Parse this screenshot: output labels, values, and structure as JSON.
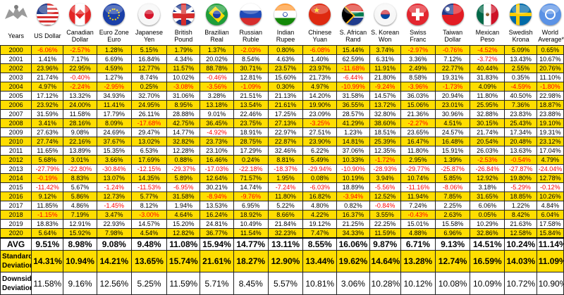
{
  "header": {
    "years_label": "Years",
    "currencies": [
      {
        "name": "US Dollar",
        "flag": "us-flag"
      },
      {
        "name": "Canadian Dollar",
        "flag": "canada-flag"
      },
      {
        "name": "Euro Zone Euro",
        "flag": "eu-flag"
      },
      {
        "name": "Japanese Yen",
        "flag": "japan-flag"
      },
      {
        "name": "British Pound",
        "flag": "uk-flag"
      },
      {
        "name": "Brazilian Real",
        "flag": "brazil-flag"
      },
      {
        "name": "Russian Ruble",
        "flag": "russia-flag"
      },
      {
        "name": "Indian Rupee",
        "flag": "india-flag"
      },
      {
        "name": "Chinese Yuan",
        "flag": "china-flag"
      },
      {
        "name": "S. African Rand",
        "flag": "south-africa-flag"
      },
      {
        "name": "S. Korean Won",
        "flag": "south-korea-flag"
      },
      {
        "name": "Swiss Franc",
        "flag": "switzerland-flag"
      },
      {
        "name": "Taiwan Dollar",
        "flag": "taiwan-flag"
      },
      {
        "name": "Mexican Peso",
        "flag": "mexico-flag"
      },
      {
        "name": "Swedish Krona",
        "flag": "sweden-flag"
      },
      {
        "name": "World Average*",
        "flag": "un-flag"
      }
    ]
  },
  "rows": [
    {
      "year": "2000",
      "values": [
        "-6.06%",
        "-2.57%",
        "1.28%",
        "5.15%",
        "1.79%",
        "1.37%",
        "-2.03%",
        "0.80%",
        "-6.08%",
        "15.44%",
        "3.74%",
        "-2.97%",
        "-0.76%",
        "-4.52%",
        "5.09%",
        "0.65%"
      ]
    },
    {
      "year": "2001",
      "values": [
        "1.41%",
        "7.17%",
        "6.69%",
        "16.84%",
        "4.34%",
        "20.02%",
        "8.54%",
        "4.63%",
        "1.40%",
        "62.59%",
        "6.31%",
        "3.36%",
        "7.12%",
        "-3.72%",
        "13.43%",
        "10.67%"
      ]
    },
    {
      "year": "2002",
      "values": [
        "23.96%",
        "22.95%",
        "4.59%",
        "12.77%",
        "11.57%",
        "88.78%",
        "30.71%",
        "23.57%",
        "23.97%",
        "-11.68%",
        "11.91%",
        "2.49%",
        "22.77%",
        "40.44%",
        "2.55%",
        "20.76%"
      ]
    },
    {
      "year": "2003",
      "values": [
        "21.74%",
        "-0.40%",
        "1.27%",
        "8.74%",
        "10.02%",
        "-0.46%",
        "12.81%",
        "15.60%",
        "21.73%",
        "-6.44%",
        "21.80%",
        "8.58%",
        "19.31%",
        "31.83%",
        "0.35%",
        "11.10%"
      ]
    },
    {
      "year": "2004",
      "values": [
        "4.97%",
        "-2.24%",
        "-2.95%",
        "0.25%",
        "-3.08%",
        "-3.56%",
        "-1.09%",
        "0.30%",
        "4.97%",
        "-10.99%",
        "-9.24%",
        "-3.96%",
        "-1.73%",
        "4.09%",
        "-4.59%",
        "-1.80%"
      ]
    },
    {
      "year": "2005",
      "values": [
        "17.12%",
        "13.32%",
        "34.93%",
        "32.70%",
        "31.06%",
        "3.28%",
        "21.51%",
        "21.13%",
        "14.20%",
        "31.58%",
        "14.57%",
        "36.03%",
        "20.94%",
        "11.80%",
        "40.50%",
        "22.98%"
      ]
    },
    {
      "year": "2006",
      "values": [
        "23.92%",
        "24.00%",
        "11.41%",
        "24.95%",
        "8.95%",
        "13.18%",
        "13.54%",
        "21.61%",
        "19.90%",
        "36.55%",
        "13.72%",
        "15.06%",
        "23.01%",
        "25.95%",
        "7.36%",
        "18.87%"
      ]
    },
    {
      "year": "2007",
      "values": [
        "31.59%",
        "11.58%",
        "17.79%",
        "26.11%",
        "28.88%",
        "9.01%",
        "22.46%",
        "17.25%",
        "23.09%",
        "28.57%",
        "32.80%",
        "21.36%",
        "30.96%",
        "32.88%",
        "23.83%",
        "23.88%"
      ]
    },
    {
      "year": "2008",
      "values": [
        "3.41%",
        "28.16%",
        "8.09%",
        "-17.68%",
        "42.75%",
        "36.45%",
        "23.75%",
        "27.13%",
        "-3.25%",
        "41.29%",
        "38.60%",
        "-2.27%",
        "4.51%",
        "30.15%",
        "25.43%",
        "19.10%"
      ]
    },
    {
      "year": "2009",
      "values": [
        "27.63%",
        "9.08%",
        "24.69%",
        "29.47%",
        "14.77%",
        "-4.92%",
        "18.91%",
        "22.97%",
        "27.51%",
        "1.23%",
        "18.51%",
        "23.65%",
        "24.57%",
        "21.74%",
        "17.34%",
        "19.31%"
      ]
    },
    {
      "year": "2010",
      "values": [
        "27.74%",
        "22.16%",
        "37.67%",
        "13.02%",
        "32.82%",
        "23.73%",
        "28.75%",
        "22.87%",
        "23.90%",
        "14.81%",
        "25.39%",
        "16.47%",
        "16.48%",
        "20.54%",
        "20.48%",
        "23.12%"
      ]
    },
    {
      "year": "2011",
      "values": [
        "11.65%",
        "13.89%",
        "15.35%",
        "6.53%",
        "12.28%",
        "23.10%",
        "17.29%",
        "32.46%",
        "6.22%",
        "37.06%",
        "12.35%",
        "11.80%",
        "15.91%",
        "26.03%",
        "13.63%",
        "17.04%"
      ]
    },
    {
      "year": "2012",
      "values": [
        "5.68%",
        "3.01%",
        "3.66%",
        "17.69%",
        "0.88%",
        "16.46%",
        "0.24%",
        "8.81%",
        "5.49%",
        "10.33%",
        "-1.72%",
        "2.95%",
        "1.39%",
        "-2.53%",
        "-0.54%",
        "4.79%"
      ]
    },
    {
      "year": "2013",
      "values": [
        "-27.79%",
        "-22.80%",
        "-30.84%",
        "-12.15%",
        "-29.37%",
        "-17.03%",
        "-22.18%",
        "-18.37%",
        "-29.94%",
        "-10.90%",
        "-28.93%",
        "-29.77%",
        "-25.87%",
        "-26.84%",
        "-27.87%",
        "-24.04%"
      ]
    },
    {
      "year": "2014",
      "values": [
        "-0.19%",
        "8.83%",
        "13.07%",
        "14.35%",
        "5.89%",
        "12.64%",
        "71.57%",
        "1.95%",
        "0.08%",
        "10.19%",
        "3.94%",
        "10.74%",
        "5.85%",
        "12.92%",
        "19.80%",
        "12.78%"
      ]
    },
    {
      "year": "2015",
      "values": [
        "-11.42%",
        "5.67%",
        "-1.24%",
        "-11.53%",
        "-6.95%",
        "30.21%",
        "14.74%",
        "-7.24%",
        "-6.03%",
        "18.89%",
        "-5.56%",
        "-11.16%",
        "-8.06%",
        "3.18%",
        "-5.29%",
        "-0.12%"
      ]
    },
    {
      "year": "2016",
      "values": [
        "9.12%",
        "5.86%",
        "12.73%",
        "5.77%",
        "31.58%",
        "-8.94%",
        "-9.76%",
        "11.80%",
        "16.82%",
        "-3.94%",
        "12.52%",
        "11.94%",
        "7.85%",
        "31.65%",
        "18.85%",
        "10.26%"
      ]
    },
    {
      "year": "2017",
      "values": [
        "11.85%",
        "4.86%",
        "-1.45%",
        "8.12%",
        "1.94%",
        "13.53%",
        "6.95%",
        "5.22%",
        "4.80%",
        "0.82%",
        "-0.84%",
        "7.24%",
        "2.25%",
        "6.06%",
        "1.22%",
        "4.84%"
      ]
    },
    {
      "year": "2018",
      "values": [
        "-1.15%",
        "7.19%",
        "3.47%",
        "-3.00%",
        "4.64%",
        "16.24%",
        "18.92%",
        "8.66%",
        "4.22%",
        "16.37%",
        "3.55%",
        "-0.43%",
        "2.63%",
        "0.05%",
        "8.42%",
        "6.04%"
      ]
    },
    {
      "year": "2019",
      "values": [
        "18.83%",
        "12.91%",
        "22.93%",
        "14.57%",
        "15.20%",
        "24.81%",
        "10.49%",
        "21.84%",
        "19.12%",
        "21.25%",
        "22.25%",
        "15.01%",
        "15.58%",
        "10.29%",
        "21.63%",
        "17.58%"
      ]
    },
    {
      "year": "2020",
      "values": [
        "5.64%",
        "15.92%",
        "7.98%",
        "4.54%",
        "12.82%",
        "36.77%",
        "11.54%",
        "32.23%",
        "7.47%",
        "34.33%",
        "11.59%",
        "4.88%",
        "6.96%",
        "32.86%",
        "12.58%",
        "15.84%"
      ]
    }
  ],
  "summary": [
    {
      "label": "AVG",
      "values": [
        "9.51%",
        "8.98%",
        "9.08%",
        "9.48%",
        "11.08%",
        "15.94%",
        "14.77%",
        "13.11%",
        "8.55%",
        "16.06%",
        "9.87%",
        "6.71%",
        "9.13%",
        "14.51%",
        "10.24%",
        "11.14%"
      ]
    },
    {
      "label": "Standard Deviation",
      "values": [
        "14.31%",
        "10.94%",
        "14.21%",
        "13.65%",
        "15.74%",
        "21.61%",
        "18.27%",
        "12.90%",
        "13.44%",
        "19.62%",
        "14.64%",
        "13.28%",
        "12.74%",
        "16.59%",
        "14.03%",
        "11.09%"
      ]
    },
    {
      "label": "Downside Deviation",
      "values": [
        "11.58%",
        "9.16%",
        "12.56%",
        "5.25%",
        "11.59%",
        "5.71%",
        "8.45%",
        "5.57%",
        "10.81%",
        "3.06%",
        "10.28%",
        "10.12%",
        "10.08%",
        "10.09%",
        "10.72%",
        "10.90%"
      ]
    }
  ],
  "colors": {
    "highlight": "#ffdd00",
    "negative": "#ff0000",
    "logo": "#9a9a9a"
  }
}
